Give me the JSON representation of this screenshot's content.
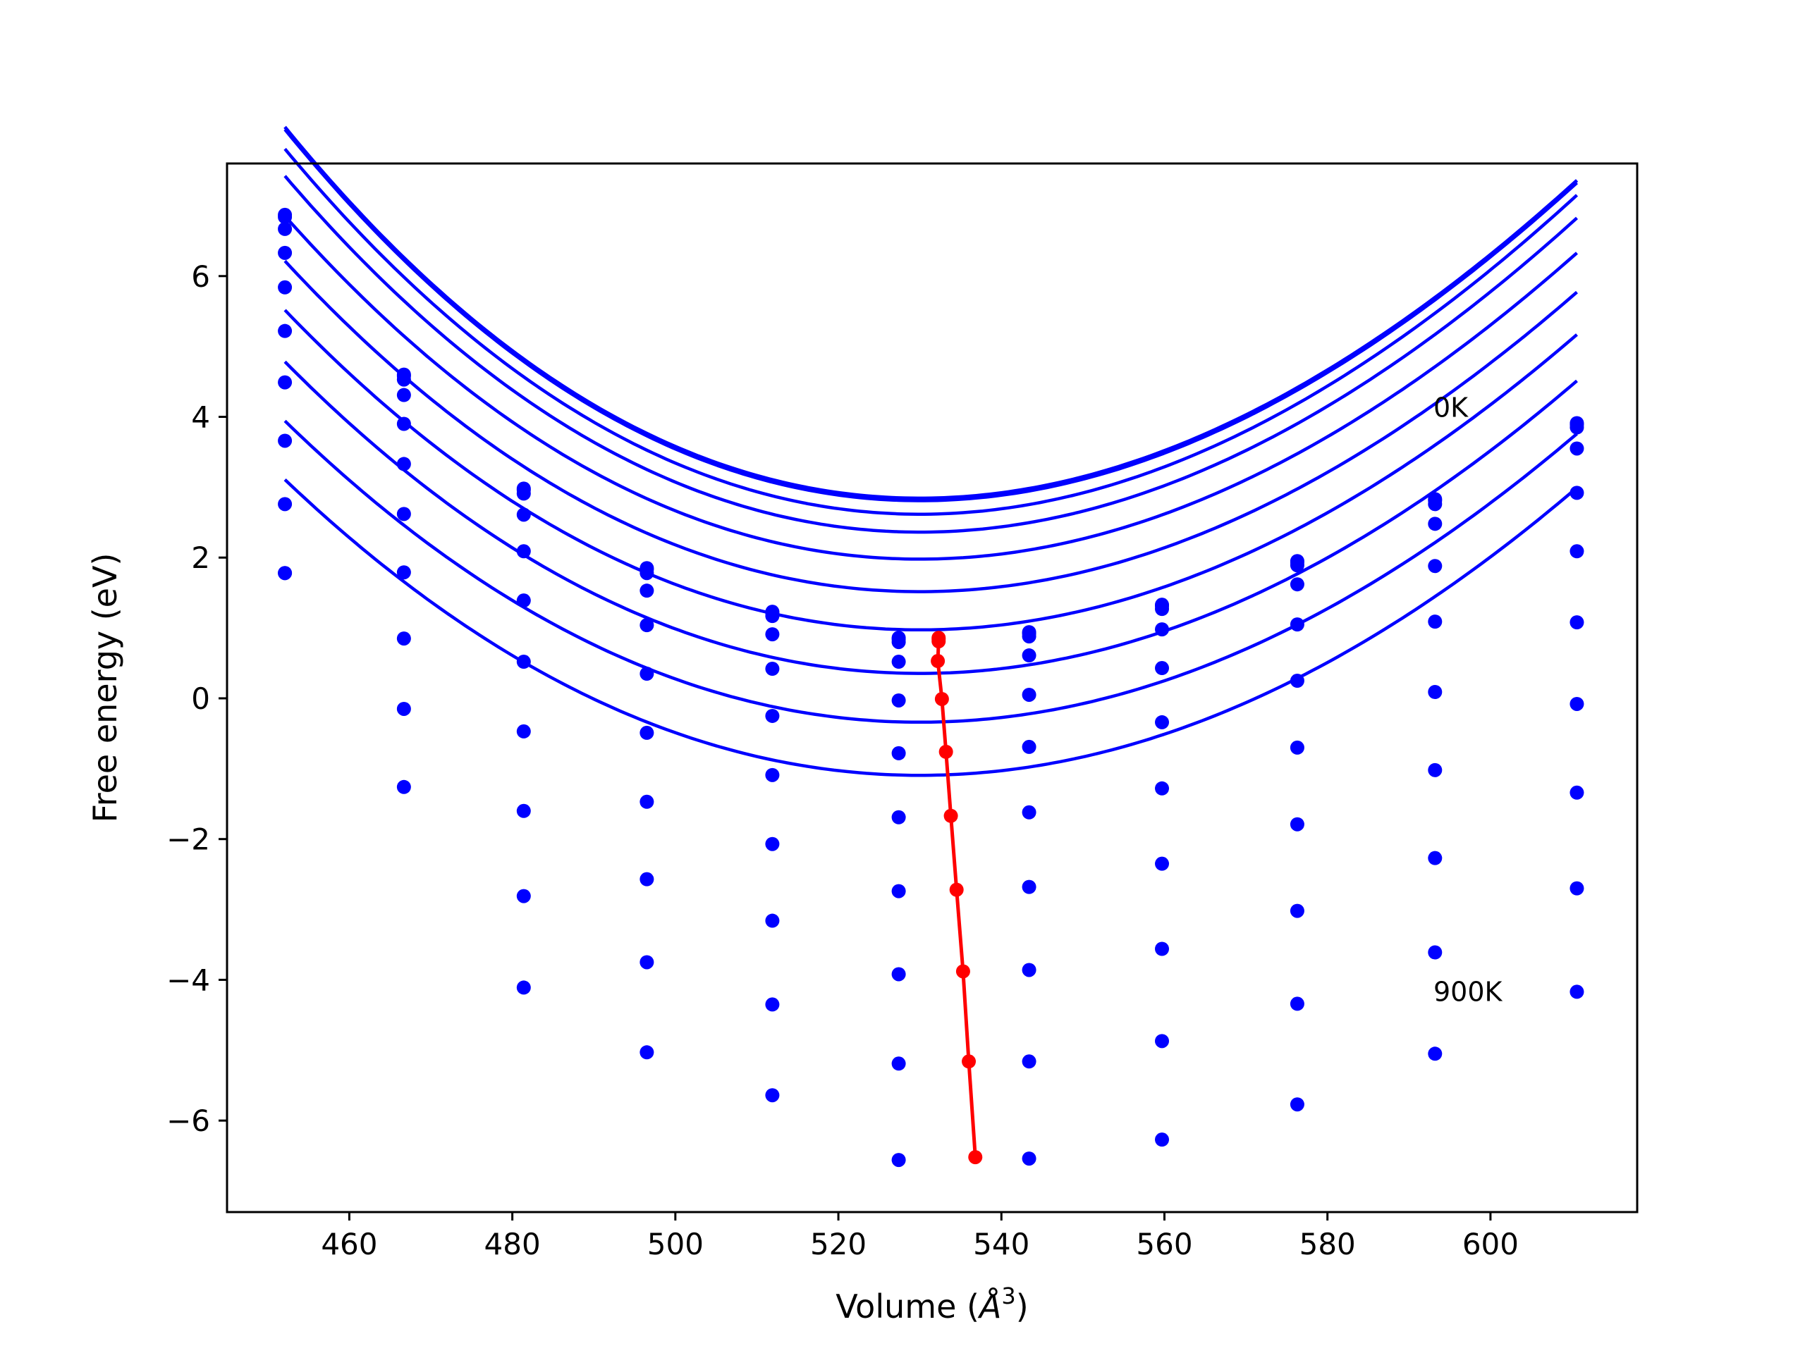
{
  "chart_data": {
    "type": "line",
    "xlabel": "Volume (",
    "xlabel_unit": "Å",
    "xlabel_sup": "3",
    "xlabel_close": ")",
    "ylabel": "Free energy (eV)",
    "xlim": [
      445,
      618
    ],
    "ylim": [
      -7.3,
      7.6
    ],
    "xticks": [
      460,
      480,
      500,
      520,
      540,
      560,
      580,
      600
    ],
    "yticks": [
      -6,
      -4,
      -2,
      0,
      2,
      4,
      6
    ],
    "grid": false,
    "legend": "none",
    "colors": {
      "curves": "#0000ff",
      "points": "#0000ff",
      "minima": "#ff0000",
      "axes": "#000000"
    },
    "annotations": [
      {
        "text": "0K",
        "x": 593,
        "y": 4.0
      },
      {
        "text": "900K",
        "x": 593,
        "y": -4.3
      }
    ],
    "volumes": [
      452.1,
      466.7,
      481.4,
      496.5,
      511.9,
      527.4,
      543.4,
      559.7,
      576.3,
      593.2,
      610.6
    ],
    "series": [
      {
        "values": [
          6.87,
          4.6,
          2.98,
          1.85,
          1.23,
          0.86,
          0.94,
          1.33,
          1.95,
          2.83,
          3.91
        ],
        "fit": {
          "a": 0.0007838,
          "b": -0.1186,
          "c": 2.8447,
          "d": -1.098e-06
        },
        "minimum": [
          532.3,
          0.86
        ]
      },
      {
        "values": [
          6.84,
          4.58,
          2.96,
          1.83,
          1.21,
          0.84,
          0.92,
          1.31,
          1.93,
          2.81,
          3.89
        ],
        "fit": {
          "a": 0.000784,
          "b": -0.1186,
          "c": 2.8398,
          "d": -1.098e-06
        },
        "minimum": [
          532.3,
          0.84
        ]
      },
      {
        "values": [
          6.67,
          4.53,
          2.91,
          1.78,
          1.17,
          0.8,
          0.88,
          1.27,
          1.89,
          2.76,
          3.85
        ],
        "fit": {
          "a": 0.0007838,
          "b": -0.1186,
          "c": 2.8083,
          "d": -1.098e-06
        },
        "minimum": [
          532.3,
          0.81
        ]
      },
      {
        "values": [
          6.33,
          4.31,
          2.61,
          1.53,
          0.91,
          0.52,
          0.61,
          0.98,
          1.62,
          2.48,
          3.55
        ],
        "fit": {
          "a": 0.000778,
          "b": -0.1113,
          "c": 2.6162,
          "d": -9.931e-07
        },
        "minimum": [
          532.2,
          0.53
        ]
      },
      {
        "values": [
          5.84,
          3.9,
          2.09,
          1.04,
          0.42,
          -0.03,
          0.05,
          0.43,
          1.05,
          1.88,
          2.92
        ],
        "fit": {
          "a": 0.0007618,
          "b": -0.1059,
          "c": 2.3618,
          "d": -9.259e-07
        },
        "minimum": [
          532.7,
          -0.01
        ]
      },
      {
        "values": [
          5.22,
          3.33,
          1.39,
          0.35,
          -0.25,
          -0.78,
          -0.69,
          -0.34,
          0.25,
          1.09,
          2.09
        ],
        "fit": {
          "a": 0.0007378,
          "b": -0.0994,
          "c": 1.978,
          "d": -8.432e-07
        },
        "minimum": [
          533.2,
          -0.76
        ]
      },
      {
        "values": [
          4.49,
          2.62,
          0.52,
          -0.49,
          -1.09,
          -1.69,
          -1.62,
          -1.28,
          -0.7,
          0.09,
          1.08
        ],
        "fit": {
          "a": 0.0007158,
          "b": -0.0928,
          "c": 1.5158,
          "d": -7.523e-07
        },
        "minimum": [
          533.8,
          -1.67
        ]
      },
      {
        "values": [
          3.66,
          1.79,
          -0.47,
          -1.47,
          -2.07,
          -2.74,
          -2.68,
          -2.35,
          -1.79,
          -1.02,
          -0.08
        ],
        "fit": {
          "a": 0.0006982,
          "b": -0.0856,
          "c": 0.9732,
          "d": -6.496e-07
        },
        "minimum": [
          534.5,
          -2.72
        ]
      },
      {
        "values": [
          2.76,
          0.85,
          -1.6,
          -2.57,
          -3.16,
          -3.92,
          -3.86,
          -3.56,
          -3.02,
          -2.27,
          -1.34
        ],
        "fit": {
          "a": 0.0006857,
          "b": -0.0791,
          "c": 0.3541,
          "d": -5.673e-07
        },
        "minimum": [
          535.3,
          -3.88
        ]
      },
      {
        "values": [
          1.78,
          -0.15,
          -2.81,
          -3.75,
          -4.35,
          -5.19,
          -5.16,
          -4.87,
          -4.34,
          -3.61,
          -2.7
        ],
        "fit": {
          "a": 0.0006688,
          "b": -0.0724,
          "c": -0.3391,
          "d": -4.707e-07
        },
        "minimum": [
          536.0,
          -5.16
        ]
      },
      {
        "values": [
          1.78,
          -1.26,
          -4.11,
          -5.03,
          -5.64,
          -6.56,
          -6.54,
          -6.27,
          -5.77,
          -5.05,
          -4.17
        ],
        "fit": {
          "a": 0.0006613,
          "b": -0.0666,
          "c": -1.094,
          "d": -4.001e-07
        },
        "minimum": [
          536.8,
          -6.52
        ]
      }
    ]
  }
}
